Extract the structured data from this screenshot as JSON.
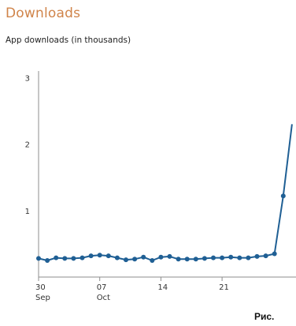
{
  "header": {
    "title": "Downloads",
    "subtitle": "App downloads (in thousands)"
  },
  "caption": "Рис.",
  "colors": {
    "title": "#d0844a",
    "series": "#1f5f94",
    "axis": "#8c8c8c"
  },
  "chart_data": {
    "type": "line",
    "title": "Downloads",
    "subtitle": "App downloads (in thousands)",
    "xlabel": "",
    "ylabel": "",
    "ylim": [
      0,
      3.1
    ],
    "yticks": [
      {
        "value": 1,
        "label": "1"
      },
      {
        "value": 2,
        "label": "2"
      },
      {
        "value": 3,
        "label": "3"
      }
    ],
    "xticks": [
      {
        "day": 0,
        "label": "30",
        "sublabel": "Sep"
      },
      {
        "day": 7,
        "label": "07",
        "sublabel": "Oct"
      },
      {
        "day": 14,
        "label": "14",
        "sublabel": ""
      },
      {
        "day": 21,
        "label": "21",
        "sublabel": ""
      }
    ],
    "grid": false,
    "series": [
      {
        "name": "",
        "x": [
          "2014-09-30",
          "2014-10-01",
          "2014-10-02",
          "2014-10-03",
          "2014-10-04",
          "2014-10-05",
          "2014-10-06",
          "2014-10-07",
          "2014-10-08",
          "2014-10-09",
          "2014-10-10",
          "2014-10-11",
          "2014-10-12",
          "2014-10-13",
          "2014-10-14",
          "2014-10-15",
          "2014-10-16",
          "2014-10-17",
          "2014-10-18",
          "2014-10-19",
          "2014-10-20",
          "2014-10-21",
          "2014-10-22",
          "2014-10-23",
          "2014-10-24",
          "2014-10-25",
          "2014-10-26",
          "2014-10-27",
          "2014-10-28"
        ],
        "values": [
          0.28,
          0.25,
          0.29,
          0.28,
          0.28,
          0.29,
          0.32,
          0.33,
          0.32,
          0.29,
          0.26,
          0.27,
          0.3,
          0.25,
          0.3,
          0.31,
          0.27,
          0.27,
          0.27,
          0.28,
          0.29,
          0.29,
          0.3,
          0.29,
          0.29,
          0.31,
          0.32,
          0.35,
          1.22
        ]
      }
    ],
    "continues_to": 2.3
  }
}
